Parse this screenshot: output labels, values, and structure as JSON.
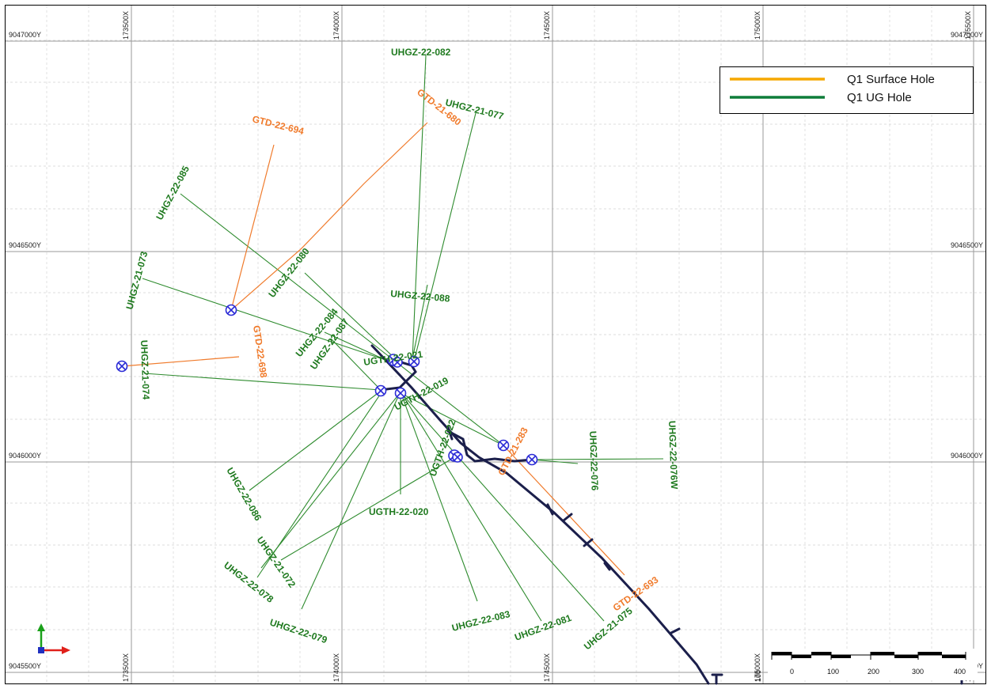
{
  "colors": {
    "surface": "#f07b2c",
    "ug": "#2e8b2e",
    "ug_label": "#1f7a1f",
    "surface_label": "#f07b2c",
    "tunnel": "#1b1f4b",
    "collar": "#2b2bd6",
    "legend_surface": "#f6a800",
    "legend_ug": "#0f7d3a"
  },
  "grid": {
    "x_labels": [
      "173500X",
      "174000X",
      "174500X",
      "175000X",
      "175500X"
    ],
    "y_labels": [
      "9047000Y",
      "9046500Y",
      "9046000Y",
      "9045500Y"
    ]
  },
  "legend": {
    "items": [
      {
        "label": "Q1 Surface Hole",
        "color": "#f6a800"
      },
      {
        "label": "Q1 UG Hole",
        "color": "#0f7d3a"
      }
    ]
  },
  "scale_bar": {
    "ticks": [
      "0",
      "100",
      "200",
      "300",
      "400"
    ],
    "left_label": "100"
  },
  "drill_holes": [
    {
      "name": "UHGZ-22-082",
      "type": "ug"
    },
    {
      "name": "GTD-21-680",
      "type": "surface"
    },
    {
      "name": "UHGZ-21-077",
      "type": "ug"
    },
    {
      "name": "GTD-22-694",
      "type": "surface"
    },
    {
      "name": "UHGZ-22-085",
      "type": "ug"
    },
    {
      "name": "UHGZ-21-073",
      "type": "ug"
    },
    {
      "name": "UHGZ-22-080",
      "type": "ug"
    },
    {
      "name": "UHGZ-22-088",
      "type": "ug"
    },
    {
      "name": "UHGZ-22-084",
      "type": "ug"
    },
    {
      "name": "UHGZ-22-087",
      "type": "ug"
    },
    {
      "name": "GTD-22-698",
      "type": "surface"
    },
    {
      "name": "UHGZ-21-074",
      "type": "ug"
    },
    {
      "name": "UGTH-22-021",
      "type": "ug"
    },
    {
      "name": "UGTH-22-019",
      "type": "ug"
    },
    {
      "name": "UGTH-22-022",
      "type": "ug"
    },
    {
      "name": "GTD-21-283",
      "type": "surface"
    },
    {
      "name": "UHGZ-22-076",
      "type": "ug"
    },
    {
      "name": "UHGZ-22-076W",
      "type": "ug"
    },
    {
      "name": "UHGZ-22-086",
      "type": "ug"
    },
    {
      "name": "UGTH-22-020",
      "type": "ug"
    },
    {
      "name": "UHGZ-21-072",
      "type": "ug"
    },
    {
      "name": "UHGZ-22-078",
      "type": "ug"
    },
    {
      "name": "UHGZ-22-079",
      "type": "ug"
    },
    {
      "name": "UHGZ-22-083",
      "type": "ug"
    },
    {
      "name": "UHGZ-22-081",
      "type": "ug"
    },
    {
      "name": "UHGZ-21-075",
      "type": "ug"
    },
    {
      "name": "GTD-22-693",
      "type": "surface"
    }
  ]
}
